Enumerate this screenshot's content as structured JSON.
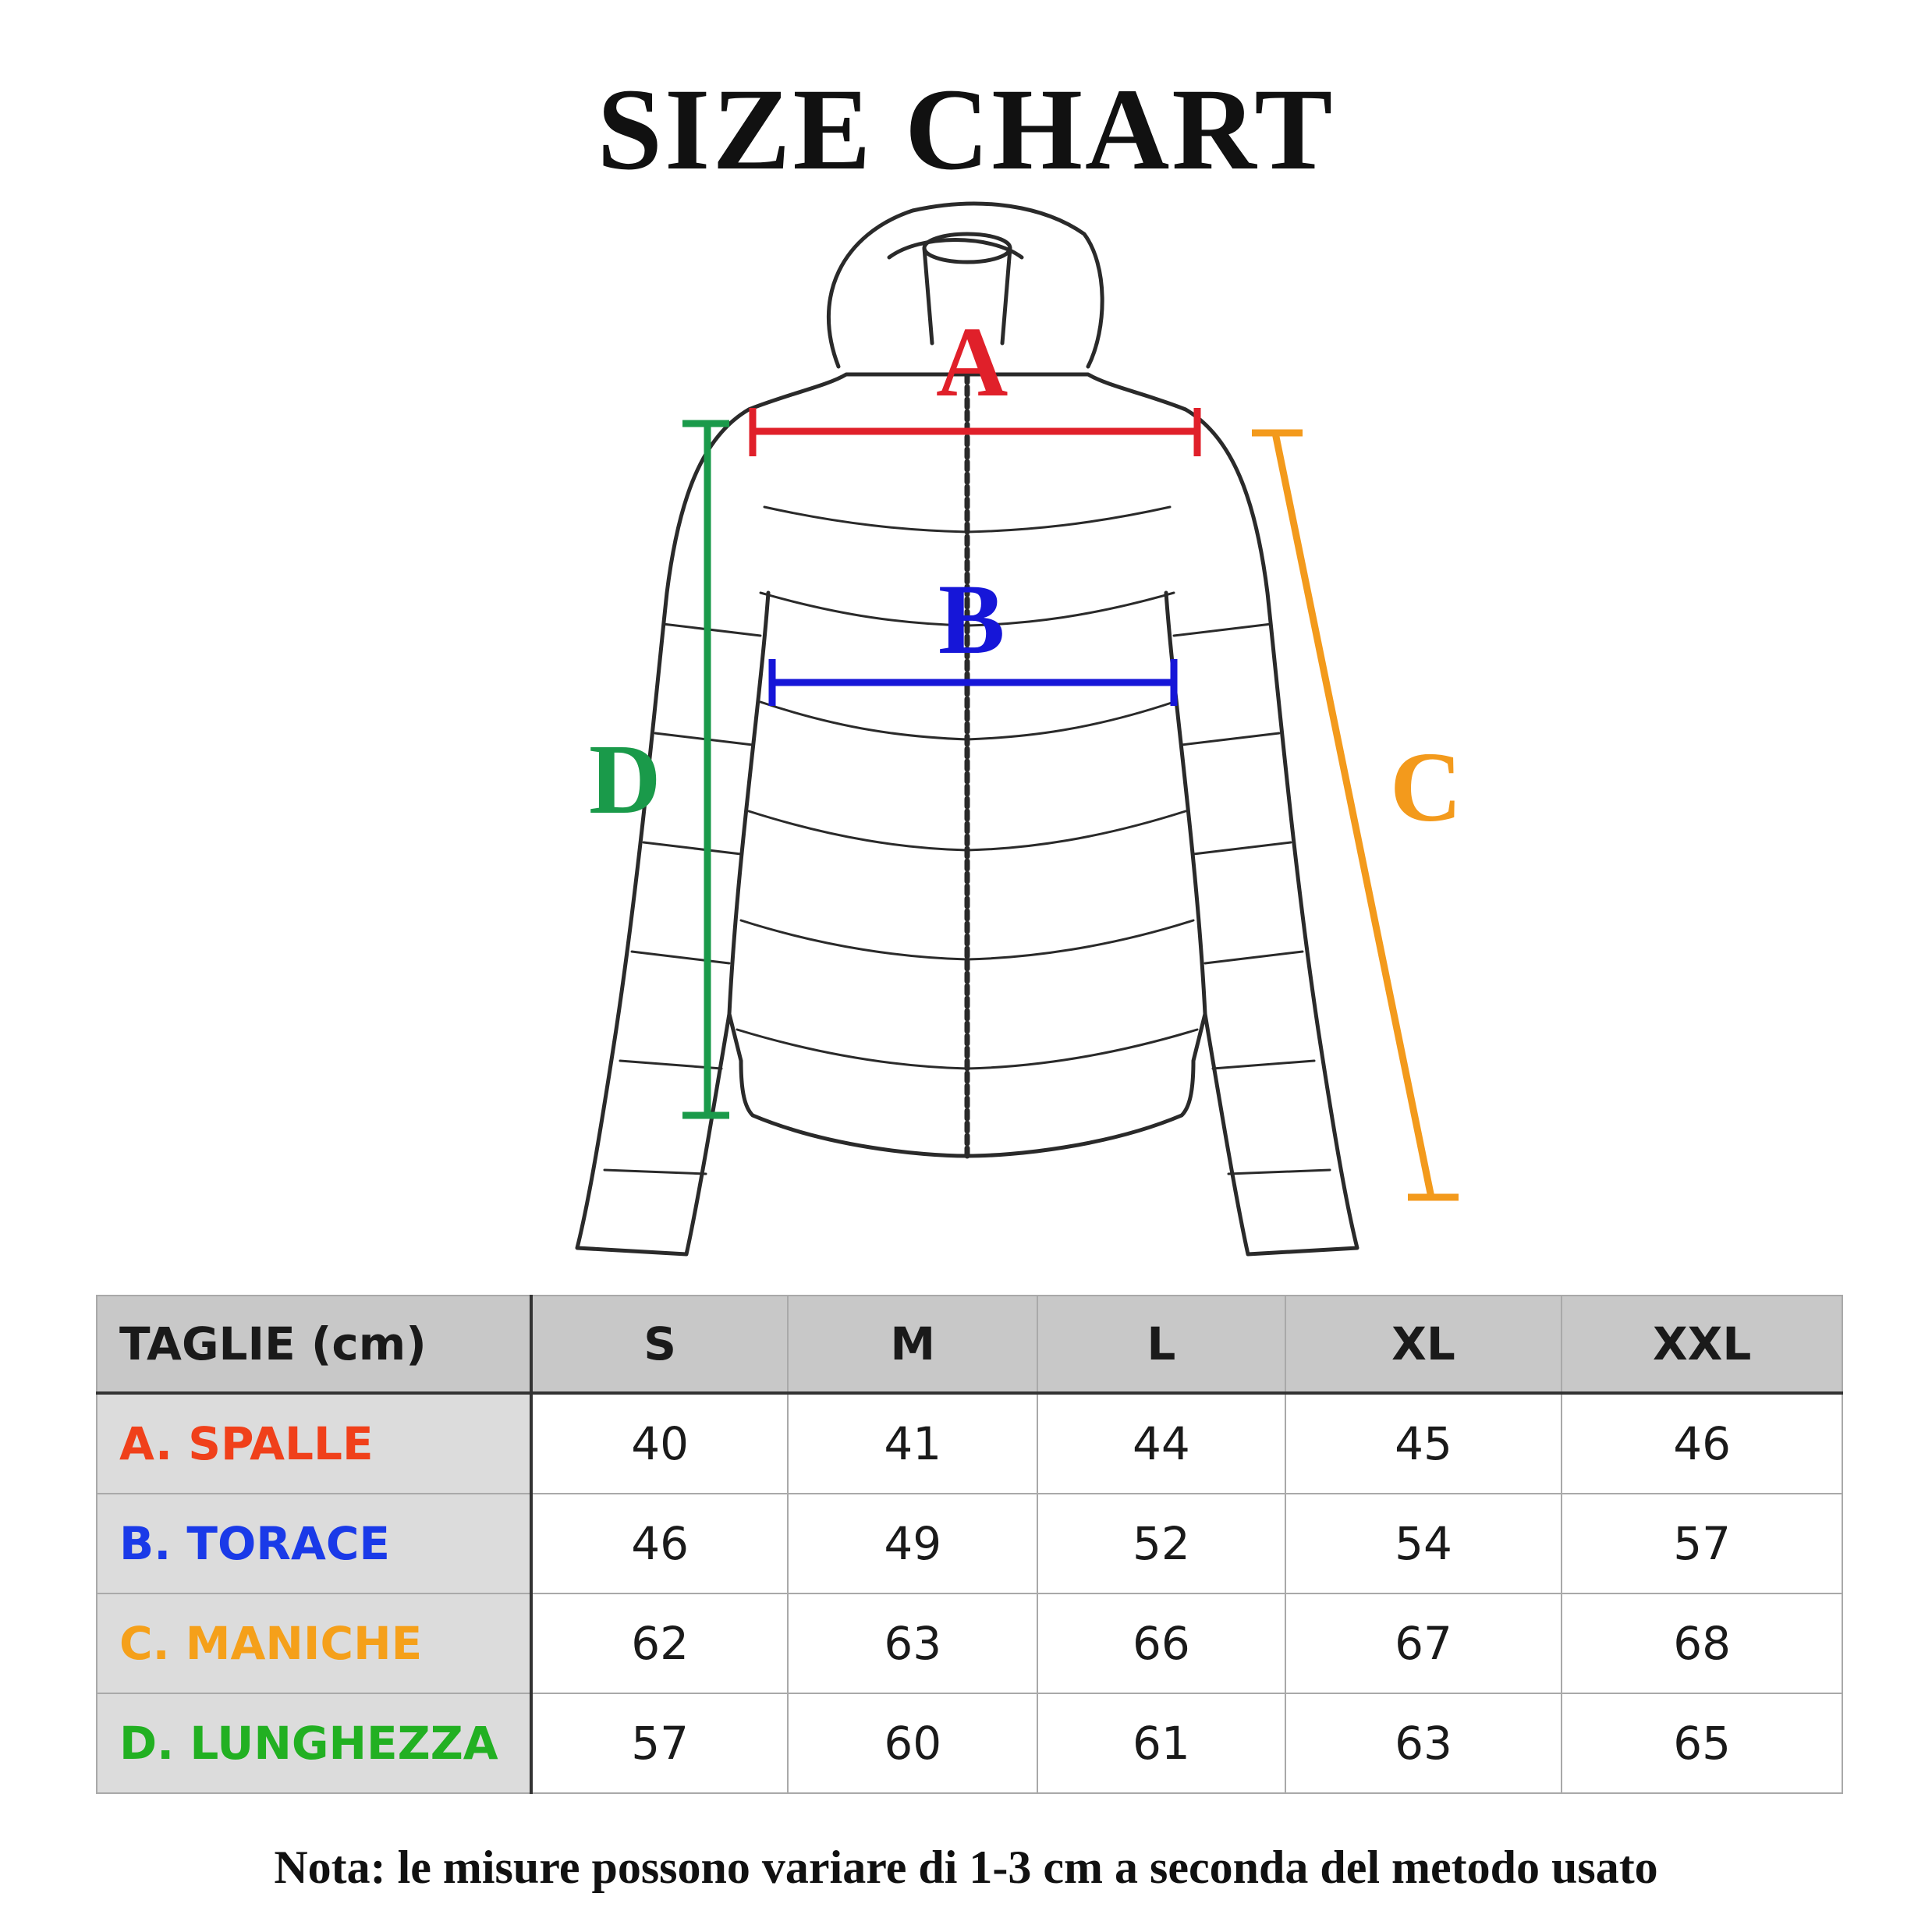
{
  "title": "SIZE CHART",
  "markers": {
    "a": {
      "label": "A",
      "color": "#e0202a"
    },
    "b": {
      "label": "B",
      "color": "#1616d8"
    },
    "c": {
      "label": "C",
      "color": "#f39a1c"
    },
    "d": {
      "label": "D",
      "color": "#1a9a4a"
    }
  },
  "table": {
    "header": [
      "TAGLIE (cm)",
      "S",
      "M",
      "L",
      "XL",
      "XXL"
    ],
    "rows": [
      {
        "label": "A. SPALLE",
        "color": "#f0401a",
        "values": [
          "40",
          "41",
          "44",
          "45",
          "46"
        ]
      },
      {
        "label": "B. TORACE",
        "color": "#1a3ae8",
        "values": [
          "46",
          "49",
          "52",
          "54",
          "57"
        ]
      },
      {
        "label": "C. MANICHE",
        "color": "#f5a01a",
        "values": [
          "62",
          "63",
          "66",
          "67",
          "68"
        ]
      },
      {
        "label": "D. LUNGHEZZA",
        "color": "#22b022",
        "values": [
          "57",
          "60",
          "61",
          "63",
          "65"
        ]
      }
    ]
  },
  "note": "Nota: le misure possono variare di 1-3 cm a seconda del metodo usato",
  "icons": {
    "figure": "puffer-jacket-icon"
  }
}
